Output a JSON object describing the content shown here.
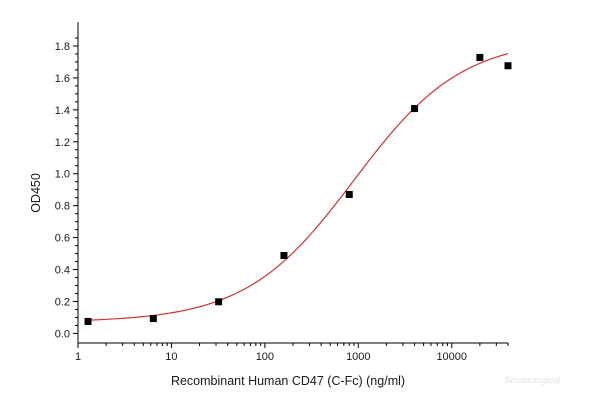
{
  "chart_data": {
    "type": "scatter",
    "xlabel": "Recombinant Human CD47 (C-Fc) (ng/ml)",
    "ylabel": "OD450",
    "x_scale": "log",
    "xlim": [
      1,
      40000
    ],
    "ylim": [
      -0.06,
      1.95
    ],
    "x_ticks": [
      {
        "value": 1,
        "label": "1"
      },
      {
        "value": 10,
        "label": "10"
      },
      {
        "value": 100,
        "label": "100"
      },
      {
        "value": 1000,
        "label": "1000"
      },
      {
        "value": 10000,
        "label": "10000"
      }
    ],
    "y_ticks": [
      {
        "value": 0.0,
        "label": "0.0"
      },
      {
        "value": 0.2,
        "label": "0.2"
      },
      {
        "value": 0.4,
        "label": "0.4"
      },
      {
        "value": 0.6,
        "label": "0.6"
      },
      {
        "value": 0.8,
        "label": "0.8"
      },
      {
        "value": 1.0,
        "label": "1.0"
      },
      {
        "value": 1.2,
        "label": "1.2"
      },
      {
        "value": 1.4,
        "label": "1.4"
      },
      {
        "value": 1.6,
        "label": "1.6"
      },
      {
        "value": 1.8,
        "label": "1.8"
      }
    ],
    "series": [
      {
        "marker": "square",
        "color": "#000000",
        "x": [
          1.28,
          6.4,
          32,
          160,
          800,
          4000,
          20000,
          40000
        ],
        "y": [
          0.075,
          0.093,
          0.198,
          0.488,
          0.87,
          1.408,
          1.728,
          1.676
        ]
      }
    ],
    "fit_curve": {
      "type": "4PL",
      "color": "#cc3333",
      "bottom": 0.07,
      "top": 1.85,
      "ec50": 900,
      "hill": 0.75
    },
    "watermark": "Sinobiological"
  }
}
